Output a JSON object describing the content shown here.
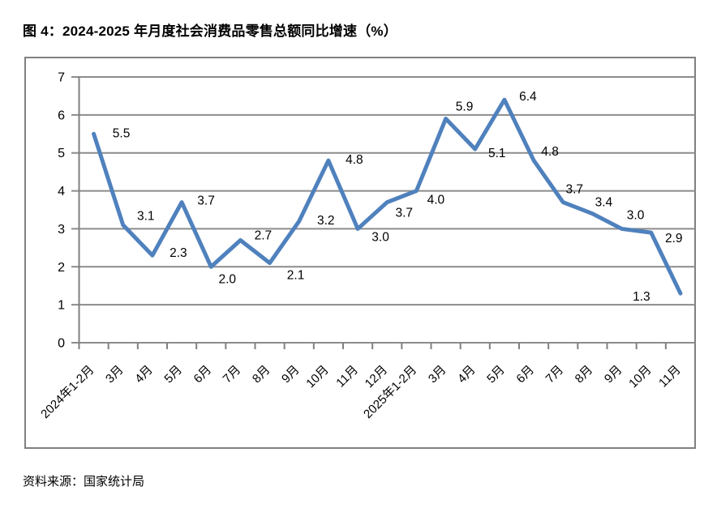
{
  "page": {
    "figure_title": "图 4：2024-2025 年月度社会消费品零售总额同比增速（%）",
    "source_note": "资料来源：国家统计局"
  },
  "colors": {
    "line": "#4F81BD",
    "gridline": "#8C8C8C",
    "axis": "#808080",
    "chart_border": "#808080",
    "label_text": "#000000",
    "background": "#FFFFFF"
  },
  "chart_data": {
    "type": "line",
    "title": "图 4：2024-2025 年月度社会消费品零售总额同比增速（%）",
    "xlabel": "",
    "ylabel": "",
    "categories": [
      "2024年1-2月",
      "3月",
      "4月",
      "5月",
      "6月",
      "7月",
      "8月",
      "9月",
      "10月",
      "11月",
      "12月",
      "2025年1-2月",
      "3月",
      "4月",
      "5月",
      "6月",
      "7月",
      "8月",
      "9月",
      "10月",
      "11月"
    ],
    "values": [
      5.5,
      3.1,
      2.3,
      3.7,
      2.0,
      2.7,
      2.1,
      3.2,
      4.8,
      3.0,
      3.7,
      4.0,
      5.9,
      5.1,
      6.4,
      4.8,
      3.7,
      3.4,
      3.0,
      2.9,
      1.3
    ],
    "data_labels": [
      "5.5",
      "3.1",
      "2.3",
      "3.7",
      "2.0",
      "2.7",
      "2.1",
      "3.2",
      "4.8",
      "3.0",
      "3.7",
      "4.0",
      "5.9",
      "5.1",
      "6.4",
      "4.8",
      "3.7",
      "3.4",
      "3.0",
      "2.9",
      "1.3"
    ],
    "ylim": [
      0,
      7
    ],
    "yticks": [
      0,
      1,
      2,
      3,
      4,
      5,
      6,
      7
    ],
    "grid": true,
    "legend_position": "none",
    "x_tick_rotation_deg": 45
  }
}
